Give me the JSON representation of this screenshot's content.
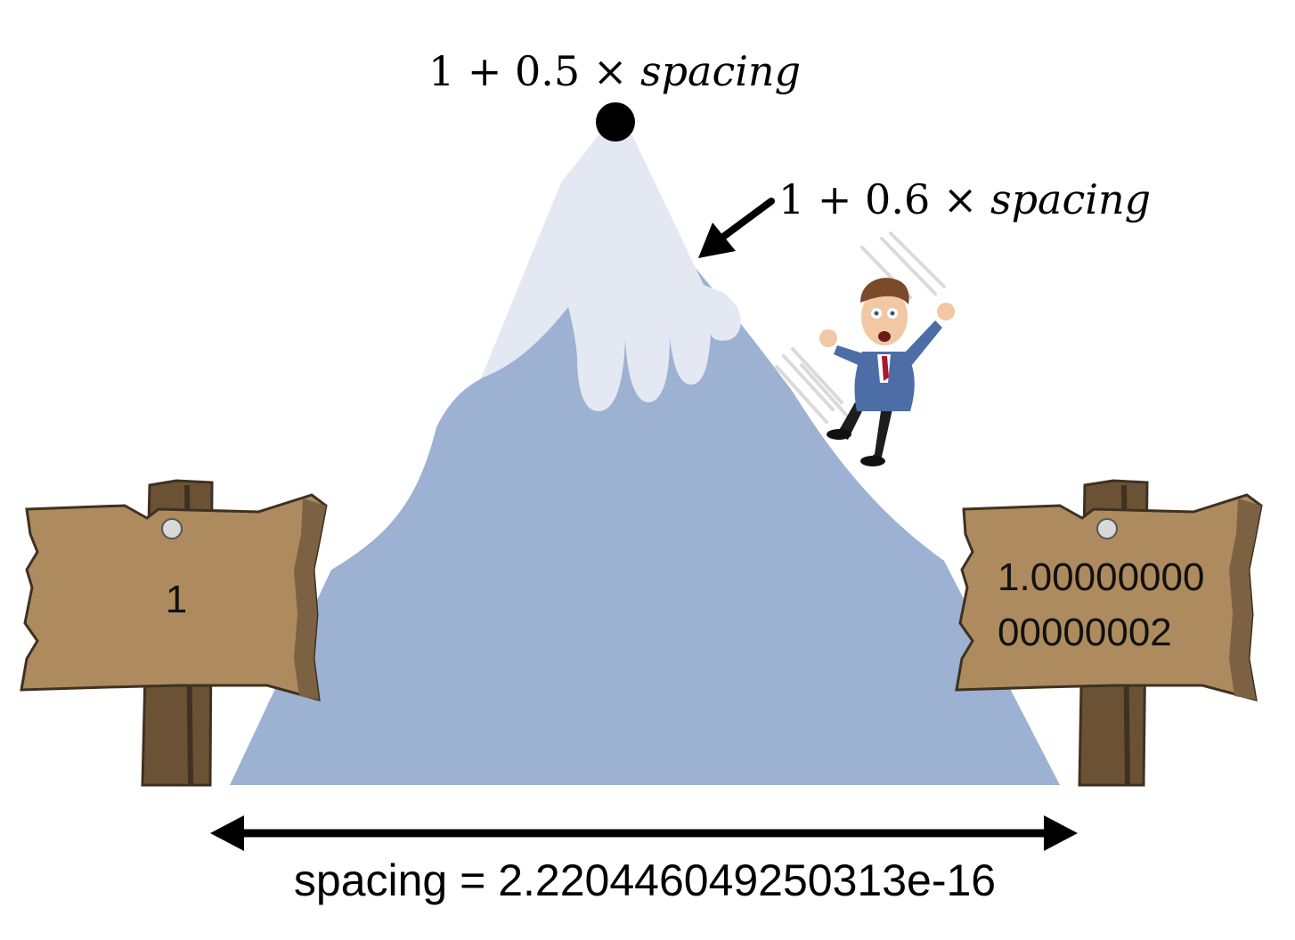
{
  "peak_label": {
    "prefix": "1 + 0.5 × ",
    "variable": "spacing"
  },
  "slope_label": {
    "prefix": "1 + 0.6 × ",
    "variable": "spacing"
  },
  "left_sign": {
    "text": "1"
  },
  "right_sign": {
    "line1": "1.00000000",
    "line2": "00000002"
  },
  "spacing_caption": "spacing = 2.220446049250313e-16",
  "colors": {
    "mountain": "#9db1d2",
    "snow": "#e3e8f3",
    "sign_board": "#ae8b5e",
    "sign_post": "#6b5235",
    "sign_dark": "#3f3122",
    "arrow": "#000000"
  }
}
